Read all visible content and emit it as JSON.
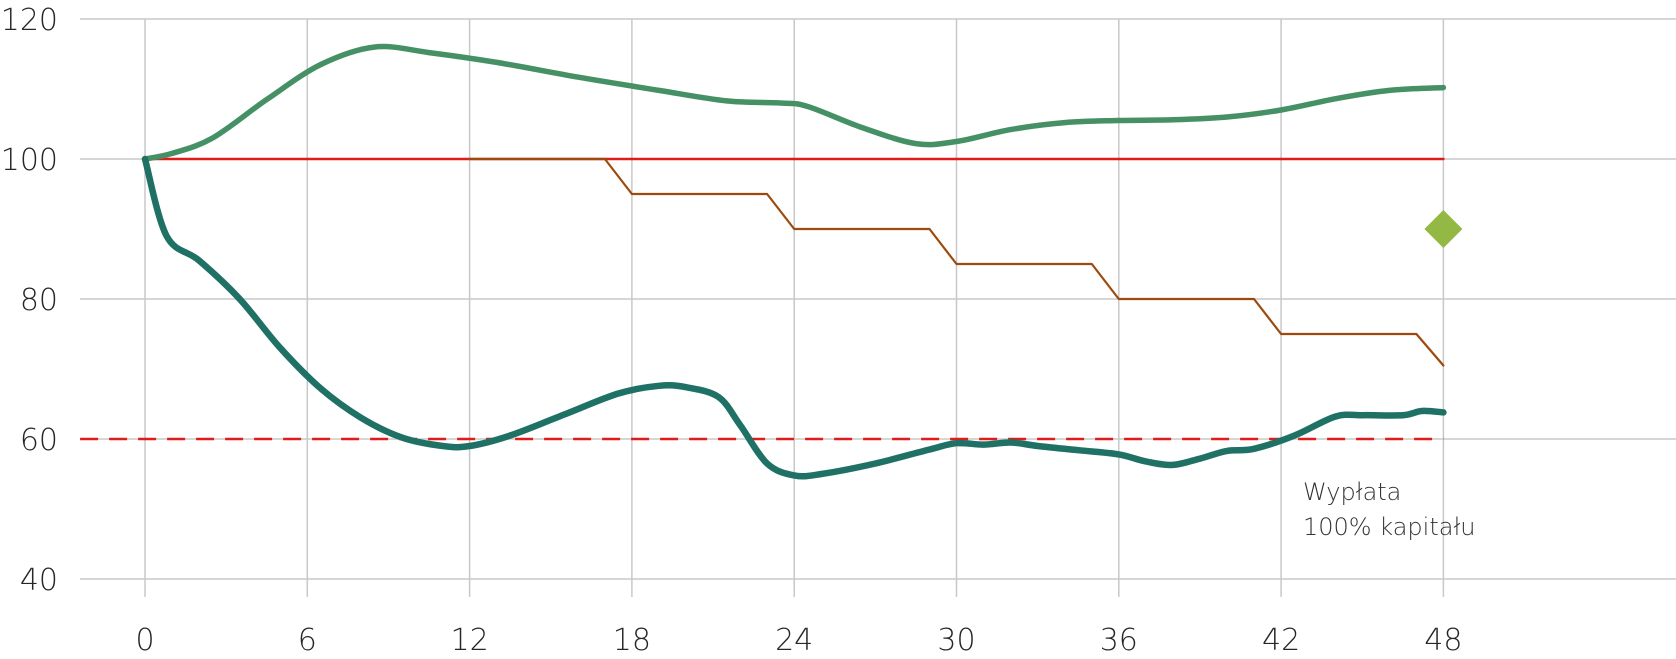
{
  "chart_data": {
    "type": "line",
    "x_ticks": [
      "0",
      "6",
      "12",
      "18",
      "24",
      "30",
      "36",
      "42",
      "48"
    ],
    "y_ticks": [
      "40",
      "60",
      "80",
      "100",
      "120"
    ],
    "xlim": [
      0,
      56
    ],
    "ylim": [
      40,
      120
    ],
    "grid": true,
    "annotation": [
      "Wypłata",
      "100% kapitału"
    ],
    "colors": {
      "upper": "#469066",
      "lower": "#1f7165",
      "step": "#9c4a0e",
      "reference": "#e01b1b",
      "barrier": "#e01b1b",
      "marker": "#93b844",
      "grid": "#c8c8c8"
    },
    "series": [
      {
        "key": "upper",
        "style": "curve",
        "points": [
          [
            0,
            100
          ],
          [
            1,
            100.8
          ],
          [
            2.5,
            103
          ],
          [
            4.5,
            108.5
          ],
          [
            6.5,
            113.5
          ],
          [
            8.5,
            116
          ],
          [
            10.5,
            115.2
          ],
          [
            13,
            113.8
          ],
          [
            16,
            111.7
          ],
          [
            19,
            109.8
          ],
          [
            21.5,
            108.3
          ],
          [
            23.5,
            108
          ],
          [
            24.5,
            107.5
          ],
          [
            26.5,
            104.5
          ],
          [
            28.5,
            102.2
          ],
          [
            30,
            102.5
          ],
          [
            32,
            104.2
          ],
          [
            34,
            105.2
          ],
          [
            36,
            105.5
          ],
          [
            38,
            105.6
          ],
          [
            40,
            106
          ],
          [
            42,
            107
          ],
          [
            44,
            108.6
          ],
          [
            46,
            109.8
          ],
          [
            48,
            110.2
          ]
        ]
      },
      {
        "key": "lower",
        "style": "curve",
        "points": [
          [
            0,
            100
          ],
          [
            0.8,
            89
          ],
          [
            2,
            85.5
          ],
          [
            3.5,
            80
          ],
          [
            5,
            73
          ],
          [
            6.5,
            67.2
          ],
          [
            8,
            63
          ],
          [
            9.5,
            60.2
          ],
          [
            11,
            59
          ],
          [
            12,
            59
          ],
          [
            13.5,
            60.5
          ],
          [
            15.5,
            63.5
          ],
          [
            17.5,
            66.5
          ],
          [
            19,
            67.6
          ],
          [
            20,
            67.4
          ],
          [
            21.2,
            66
          ],
          [
            22,
            62
          ],
          [
            23,
            56.5
          ],
          [
            24,
            54.8
          ],
          [
            25,
            55
          ],
          [
            27,
            56.5
          ],
          [
            29,
            58.5
          ],
          [
            30,
            59.4
          ],
          [
            31,
            59.2
          ],
          [
            32,
            59.5
          ],
          [
            33,
            59
          ],
          [
            34.5,
            58.4
          ],
          [
            36,
            57.8
          ],
          [
            37,
            56.8
          ],
          [
            38,
            56.3
          ],
          [
            39,
            57.2
          ],
          [
            40,
            58.3
          ],
          [
            41,
            58.6
          ],
          [
            42.5,
            60.5
          ],
          [
            44,
            63.2
          ],
          [
            45,
            63.4
          ],
          [
            46.5,
            63.4
          ],
          [
            47.2,
            64
          ],
          [
            48,
            63.8
          ]
        ]
      },
      {
        "key": "step",
        "style": "polyline",
        "points": [
          [
            12,
            100
          ],
          [
            17,
            100
          ],
          [
            18,
            95
          ],
          [
            23,
            95
          ],
          [
            24,
            90
          ],
          [
            29,
            90
          ],
          [
            30,
            85
          ],
          [
            35,
            85
          ],
          [
            36,
            80
          ],
          [
            41,
            80
          ],
          [
            42,
            75
          ],
          [
            47,
            75
          ],
          [
            48,
            70.5
          ]
        ]
      },
      {
        "key": "reference",
        "style": "solid",
        "points": [
          [
            0,
            100
          ],
          [
            48,
            100
          ]
        ]
      },
      {
        "key": "barrier",
        "style": "dashed",
        "points": [
          [
            -2.4,
            60
          ],
          [
            48,
            60
          ]
        ]
      }
    ],
    "marker": {
      "x": 48,
      "y": 90
    }
  }
}
